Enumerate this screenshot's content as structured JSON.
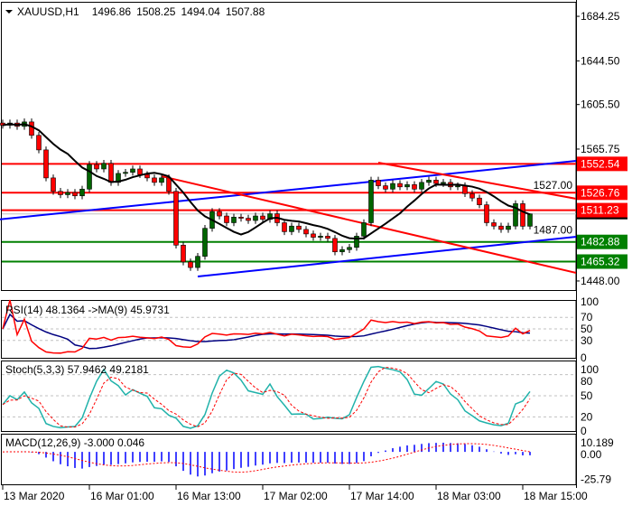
{
  "header": {
    "symbol": "XAUUSD,H1",
    "open": "1496.86",
    "high": "1508.25",
    "low": "1494.04",
    "close": "1507.88"
  },
  "chart_data": {
    "type": "candlestick",
    "symbol": "XAUUSD",
    "timeframe": "H1",
    "close": [
      1587,
      1589,
      1586,
      1590,
      1578,
      1565,
      1540,
      1528,
      1525,
      1527,
      1524,
      1530,
      1552,
      1548,
      1553,
      1536,
      1544,
      1545,
      1548,
      1543,
      1540,
      1536,
      1540,
      1528,
      1480,
      1465,
      1460,
      1470,
      1495,
      1510,
      1506,
      1500,
      1505,
      1504,
      1502,
      1506,
      1503,
      1508,
      1500,
      1492,
      1497,
      1494,
      1490,
      1487,
      1488,
      1486,
      1474,
      1476,
      1478,
      1488,
      1500,
      1538,
      1533,
      1530,
      1535,
      1532,
      1534,
      1530,
      1536,
      1538,
      1535,
      1536,
      1532,
      1533,
      1526,
      1522,
      1516,
      1500,
      1497,
      1494,
      1497,
      1517,
      1496.86,
      1507.88
    ],
    "last_bar": {
      "open": 1496.86,
      "high": 1508.25,
      "low": 1494.04,
      "close": 1507.88
    },
    "ylim": [
      1439.9,
      1697.2
    ],
    "price_ticks": [
      "1684.25",
      "1644.50",
      "1605.50",
      "1565.75",
      "1527.00",
      "1487.00",
      "1448.00"
    ],
    "time_labels": [
      {
        "label": "13 Mar 2020",
        "bar": 0
      },
      {
        "label": "16 Mar 01:00",
        "bar": 12
      },
      {
        "label": "16 Mar 13:00",
        "bar": 24
      },
      {
        "label": "17 Mar 02:00",
        "bar": 36
      },
      {
        "label": "17 Mar 14:00",
        "bar": 48
      },
      {
        "label": "18 Mar 03:00",
        "bar": 60
      },
      {
        "label": "18 Mar 15:00",
        "bar": 72
      }
    ],
    "horizontal_levels": [
      {
        "price": 1552.54,
        "label": "1552.54",
        "color": "#ff0000"
      },
      {
        "price": 1526.76,
        "label": "1526.76",
        "color": "#ff0000"
      },
      {
        "price": 1511.23,
        "label": "1511.23",
        "color": "#ff0000"
      },
      {
        "price": 1482.88,
        "label": "1482.88",
        "color": "#008000"
      },
      {
        "price": 1465.32,
        "label": "1465.32",
        "color": "#008000"
      }
    ],
    "trend_lines": [
      {
        "from": [
          -0.4,
          1503.0
        ],
        "to": [
          79.4,
          1555.2
        ],
        "color": "#0000ff"
      },
      {
        "from": [
          27,
          1452.0
        ],
        "to": [
          79.4,
          1487.5
        ],
        "color": "#0000ff"
      },
      {
        "from": [
          22,
          1541.5
        ],
        "to": [
          79.4,
          1455.2
        ],
        "color": "#ff0000"
      },
      {
        "from": [
          52,
          1553.6
        ],
        "to": [
          79.4,
          1521.4
        ],
        "color": "#ff0000"
      }
    ],
    "colors": {
      "bull": "#006400",
      "bear": "#ff0000",
      "ma": "#000000",
      "current_price_line": "#c0c0c0"
    },
    "indicators": {
      "rsi": {
        "label": "RSI(14) 48.1364  ->MA(9) 45.9731",
        "levels": [
          70,
          50,
          30
        ],
        "ticks": [
          "100",
          "70",
          "50",
          "30",
          "0"
        ],
        "ylim": [
          0,
          100
        ],
        "colors": {
          "rsi": "#ff0000",
          "ma": "#000080"
        }
      },
      "stoch": {
        "label": "Stoch(5,3,3) 57.9462 49.2181",
        "levels": [
          80,
          50,
          20
        ],
        "ticks": [
          "100",
          "80",
          "50",
          "20",
          "0"
        ],
        "ylim": [
          0,
          100
        ],
        "colors": {
          "main": "#20b2aa",
          "signal": "#ff0000"
        }
      },
      "macd": {
        "label": "MACD(12,26,9) -3.000 0.046",
        "ticks": [
          "10.189",
          "0.00",
          "-25.79"
        ],
        "ylim": [
          -30.7,
          17.2
        ],
        "colors": {
          "histogram": "#0000ff",
          "signal": "#ff0000"
        }
      }
    }
  }
}
